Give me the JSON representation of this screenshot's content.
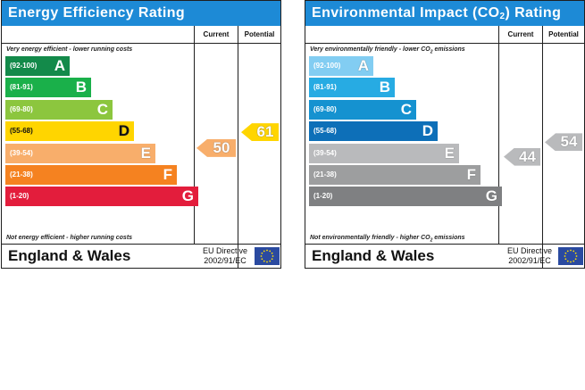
{
  "chart_data": [
    {
      "type": "bar",
      "title": "Energy Efficiency Rating",
      "column_headers": [
        "Current",
        "Potential"
      ],
      "top_caption": "Very energy efficient - lower running costs",
      "bottom_caption": "Not energy efficient - higher running costs",
      "categories": [
        "A",
        "B",
        "C",
        "D",
        "E",
        "F",
        "G"
      ],
      "bands": [
        {
          "range": "(92-100)",
          "letter": "A",
          "color": "#138a4a"
        },
        {
          "range": "(81-91)",
          "letter": "B",
          "color": "#1ab04a"
        },
        {
          "range": "(69-80)",
          "letter": "C",
          "color": "#8cc63e"
        },
        {
          "range": "(55-68)",
          "letter": "D",
          "color": "#ffd500"
        },
        {
          "range": "(39-54)",
          "letter": "E",
          "color": "#f8ae6b"
        },
        {
          "range": "(21-38)",
          "letter": "F",
          "color": "#f58220"
        },
        {
          "range": "(1-20)",
          "letter": "G",
          "color": "#e31d3c"
        }
      ],
      "current": {
        "value": 50,
        "label": "50",
        "band": "E",
        "color": "#f8ae6b"
      },
      "potential": {
        "value": 61,
        "label": "61",
        "band": "D",
        "color": "#ffd500"
      },
      "footer_title": "England & Wales",
      "directive_line1": "EU Directive",
      "directive_line2": "2002/91/EC"
    },
    {
      "type": "bar",
      "title": "Environmental Impact (CO",
      "title_sub": "2",
      "title_end": ") Rating",
      "column_headers": [
        "Current",
        "Potential"
      ],
      "top_caption": "Very environmentally friendly - lower CO",
      "top_caption_sub": "2",
      "top_caption_end": " emissions",
      "bottom_caption": "Not environmentally friendly - higher CO",
      "bottom_caption_sub": "2",
      "bottom_caption_end": " emissions",
      "categories": [
        "A",
        "B",
        "C",
        "D",
        "E",
        "F",
        "G"
      ],
      "bands": [
        {
          "range": "(92-100)",
          "letter": "A",
          "color": "#82cdf2"
        },
        {
          "range": "(81-91)",
          "letter": "B",
          "color": "#27abe3"
        },
        {
          "range": "(69-80)",
          "letter": "C",
          "color": "#1592d0"
        },
        {
          "range": "(55-68)",
          "letter": "D",
          "color": "#0d6fb8"
        },
        {
          "range": "(39-54)",
          "letter": "E",
          "color": "#b9babc"
        },
        {
          "range": "(21-38)",
          "letter": "F",
          "color": "#9d9e9f"
        },
        {
          "range": "(1-20)",
          "letter": "G",
          "color": "#7f8082"
        }
      ],
      "current": {
        "value": 44,
        "label": "44",
        "band": "E",
        "color": "#b9babc"
      },
      "potential": {
        "value": 54,
        "label": "54",
        "band": "E",
        "color": "#b9babc"
      },
      "footer_title": "England & Wales",
      "directive_line1": "EU Directive",
      "directive_line2": "2002/91/EC"
    }
  ]
}
